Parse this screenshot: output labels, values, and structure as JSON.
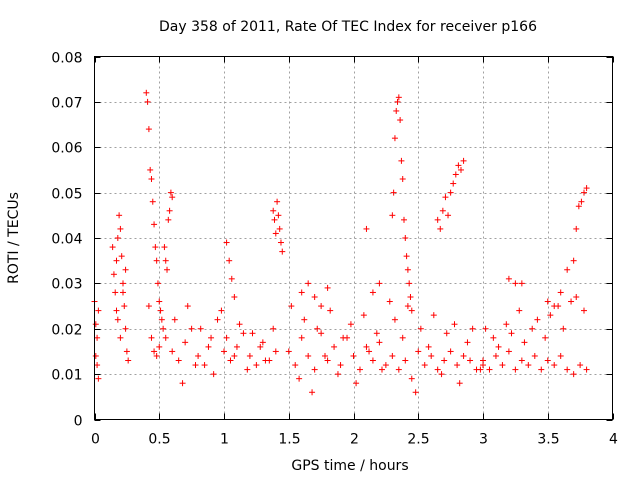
{
  "chart_data": {
    "type": "scatter",
    "title": "Day 358 of 2011, Rate Of TEC Index for receiver p166",
    "xlabel": "GPS time / hours",
    "ylabel": "ROTI / TECUs",
    "xlim": [
      0,
      4
    ],
    "ylim": [
      0,
      0.08
    ],
    "grid": true,
    "marker": "+",
    "color": "#ff0000",
    "x_ticks": [
      0,
      0.5,
      1,
      1.5,
      2,
      2.5,
      3,
      3.5,
      4
    ],
    "x_tick_labels": [
      "0",
      "0.5",
      "1",
      "1.5",
      "2",
      "2.5",
      "3",
      "3.5",
      "4"
    ],
    "y_ticks": [
      0,
      0.01,
      0.02,
      0.03,
      0.04,
      0.05,
      0.06,
      0.07,
      0.08
    ],
    "y_tick_labels": [
      "0",
      "0.01",
      "0.02",
      "0.03",
      "0.04",
      "0.05",
      "0.06",
      "0.07",
      "0.08"
    ],
    "series": [
      {
        "name": "ROTI",
        "x": [
          0.0,
          0.01,
          0.01,
          0.02,
          0.02,
          0.03,
          0.03,
          0.14,
          0.15,
          0.16,
          0.17,
          0.18,
          0.19,
          0.2,
          0.21,
          0.22,
          0.23,
          0.24,
          0.25,
          0.26,
          0.17,
          0.18,
          0.2,
          0.22,
          0.24,
          0.4,
          0.41,
          0.42,
          0.43,
          0.44,
          0.45,
          0.46,
          0.47,
          0.48,
          0.49,
          0.5,
          0.51,
          0.52,
          0.53,
          0.54,
          0.55,
          0.56,
          0.57,
          0.58,
          0.59,
          0.6,
          0.42,
          0.44,
          0.46,
          0.48,
          0.5,
          0.55,
          0.6,
          0.65,
          0.7,
          0.75,
          0.8,
          0.85,
          0.9,
          0.95,
          1.0,
          1.05,
          1.1,
          1.15,
          1.2,
          1.25,
          1.3,
          1.35,
          1.4,
          0.62,
          0.68,
          0.72,
          0.78,
          0.82,
          0.88,
          0.92,
          0.98,
          1.02,
          1.08,
          1.12,
          1.18,
          1.22,
          1.28,
          1.32,
          1.38,
          1.02,
          1.04,
          1.06,
          1.08,
          1.38,
          1.39,
          1.4,
          1.41,
          1.42,
          1.43,
          1.44,
          1.45,
          1.5,
          1.55,
          1.6,
          1.65,
          1.7,
          1.75,
          1.8,
          1.85,
          1.9,
          1.95,
          2.0,
          2.05,
          2.1,
          2.15,
          2.2,
          2.25,
          1.52,
          1.58,
          1.62,
          1.68,
          1.72,
          1.78,
          1.82,
          1.88,
          1.92,
          1.98,
          2.02,
          2.08,
          2.12,
          2.18,
          2.22,
          2.28,
          1.6,
          1.65,
          1.7,
          1.75,
          1.8,
          2.1,
          2.15,
          2.2,
          2.3,
          2.31,
          2.32,
          2.33,
          2.34,
          2.35,
          2.36,
          2.37,
          2.38,
          2.39,
          2.4,
          2.41,
          2.42,
          2.43,
          2.44,
          2.45,
          2.3,
          2.35,
          2.4,
          2.45,
          2.5,
          2.55,
          2.6,
          2.65,
          2.7,
          2.75,
          2.8,
          2.85,
          2.9,
          2.95,
          3.0,
          2.32,
          2.38,
          2.42,
          2.48,
          2.52,
          2.58,
          2.62,
          2.68,
          2.72,
          2.78,
          2.82,
          2.88,
          2.92,
          2.98,
          2.65,
          2.67,
          2.69,
          2.71,
          2.73,
          2.75,
          2.77,
          2.79,
          2.81,
          2.83,
          2.85,
          3.0,
          3.05,
          3.1,
          3.15,
          3.2,
          3.25,
          3.3,
          3.35,
          3.4,
          3.45,
          3.5,
          3.55,
          3.6,
          3.65,
          3.7,
          3.75,
          3.8,
          3.02,
          3.08,
          3.12,
          3.18,
          3.22,
          3.28,
          3.32,
          3.38,
          3.42,
          3.48,
          3.52,
          3.58,
          3.62,
          3.68,
          3.72,
          3.78,
          3.2,
          3.25,
          3.3,
          3.5,
          3.55,
          3.6,
          3.65,
          3.7,
          3.72,
          3.74,
          3.76,
          3.78,
          3.8
        ],
        "y": [
          0.026,
          0.021,
          0.014,
          0.018,
          0.012,
          0.024,
          0.009,
          0.038,
          0.032,
          0.028,
          0.035,
          0.04,
          0.045,
          0.042,
          0.036,
          0.03,
          0.025,
          0.02,
          0.015,
          0.013,
          0.024,
          0.022,
          0.018,
          0.028,
          0.033,
          0.072,
          0.07,
          0.064,
          0.055,
          0.053,
          0.048,
          0.043,
          0.038,
          0.035,
          0.03,
          0.026,
          0.024,
          0.022,
          0.02,
          0.038,
          0.035,
          0.033,
          0.044,
          0.046,
          0.05,
          0.049,
          0.025,
          0.018,
          0.015,
          0.014,
          0.016,
          0.018,
          0.015,
          0.013,
          0.017,
          0.02,
          0.014,
          0.012,
          0.018,
          0.022,
          0.015,
          0.013,
          0.016,
          0.019,
          0.014,
          0.012,
          0.017,
          0.013,
          0.015,
          0.022,
          0.008,
          0.025,
          0.012,
          0.02,
          0.016,
          0.01,
          0.024,
          0.018,
          0.014,
          0.021,
          0.011,
          0.019,
          0.016,
          0.013,
          0.02,
          0.039,
          0.035,
          0.031,
          0.027,
          0.046,
          0.044,
          0.041,
          0.048,
          0.045,
          0.042,
          0.039,
          0.037,
          0.015,
          0.012,
          0.018,
          0.014,
          0.011,
          0.019,
          0.013,
          0.016,
          0.012,
          0.018,
          0.014,
          0.011,
          0.016,
          0.013,
          0.017,
          0.012,
          0.025,
          0.009,
          0.022,
          0.006,
          0.02,
          0.014,
          0.024,
          0.01,
          0.018,
          0.021,
          0.008,
          0.023,
          0.015,
          0.019,
          0.011,
          0.026,
          0.028,
          0.03,
          0.027,
          0.025,
          0.029,
          0.042,
          0.028,
          0.03,
          0.045,
          0.05,
          0.062,
          0.068,
          0.07,
          0.071,
          0.066,
          0.057,
          0.053,
          0.044,
          0.04,
          0.036,
          0.033,
          0.03,
          0.027,
          0.024,
          0.014,
          0.011,
          0.013,
          0.009,
          0.015,
          0.012,
          0.014,
          0.011,
          0.013,
          0.015,
          0.012,
          0.014,
          0.013,
          0.011,
          0.012,
          0.022,
          0.018,
          0.025,
          0.006,
          0.02,
          0.016,
          0.023,
          0.01,
          0.019,
          0.021,
          0.008,
          0.017,
          0.02,
          0.011,
          0.044,
          0.042,
          0.046,
          0.049,
          0.045,
          0.05,
          0.052,
          0.054,
          0.056,
          0.055,
          0.057,
          0.013,
          0.011,
          0.014,
          0.012,
          0.015,
          0.011,
          0.013,
          0.012,
          0.014,
          0.011,
          0.013,
          0.012,
          0.014,
          0.011,
          0.01,
          0.012,
          0.011,
          0.02,
          0.018,
          0.016,
          0.021,
          0.019,
          0.024,
          0.017,
          0.02,
          0.022,
          0.018,
          0.023,
          0.025,
          0.02,
          0.026,
          0.027,
          0.024,
          0.031,
          0.03,
          0.03,
          0.026,
          0.025,
          0.028,
          0.033,
          0.035,
          0.042,
          0.047,
          0.048,
          0.05,
          0.051
        ]
      }
    ]
  }
}
